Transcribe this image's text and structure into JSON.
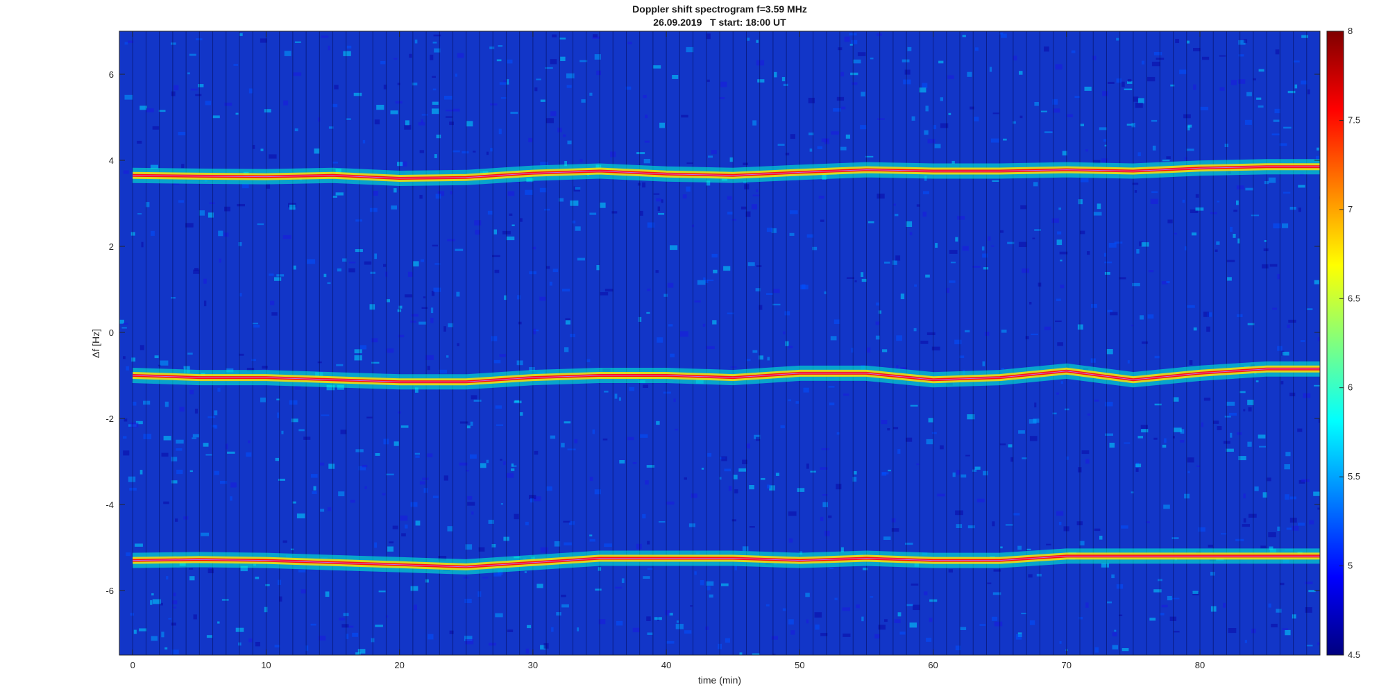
{
  "chart_data": {
    "type": "heatmap",
    "title": "Doppler shift spectrogram f=3.59 MHz",
    "subtitle": "26.09.2019   T start: 18:00 UT",
    "xlabel": "time (min)",
    "ylabel": "Δf [Hz]",
    "xlim": [
      -1,
      89
    ],
    "ylim": [
      -7.5,
      7.0
    ],
    "x_ticks": [
      0,
      10,
      20,
      30,
      40,
      50,
      60,
      70,
      80
    ],
    "y_ticks": [
      6,
      4,
      2,
      0,
      -2,
      -4,
      -6
    ],
    "colorbar": {
      "colormap": "jet",
      "range": [
        4.5,
        8
      ],
      "ticks": [
        8,
        7.5,
        7,
        6.5,
        6,
        5.5,
        5,
        4.5
      ]
    },
    "series": [
      {
        "x": [
          0,
          5,
          10,
          15,
          20,
          25,
          30,
          35,
          40,
          45,
          50,
          55,
          60,
          65,
          70,
          75,
          80,
          85,
          89
        ],
        "values": [
          3.65,
          3.63,
          3.62,
          3.65,
          3.58,
          3.6,
          3.7,
          3.75,
          3.68,
          3.65,
          3.72,
          3.78,
          3.75,
          3.75,
          3.78,
          3.75,
          3.82,
          3.85,
          3.85
        ]
      },
      {
        "x": [
          0,
          5,
          10,
          15,
          20,
          25,
          30,
          35,
          40,
          45,
          50,
          55,
          60,
          65,
          70,
          75,
          80,
          85,
          89
        ],
        "values": [
          -1.0,
          -1.05,
          -1.05,
          -1.1,
          -1.15,
          -1.15,
          -1.05,
          -1.0,
          -1.0,
          -1.05,
          -0.95,
          -0.95,
          -1.1,
          -1.05,
          -0.9,
          -1.1,
          -0.95,
          -0.85,
          -0.85
        ]
      },
      {
        "x": [
          0,
          5,
          10,
          15,
          20,
          25,
          30,
          35,
          40,
          45,
          50,
          55,
          60,
          65,
          70,
          75,
          80,
          85,
          89
        ],
        "values": [
          -5.3,
          -5.28,
          -5.3,
          -5.35,
          -5.4,
          -5.45,
          -5.35,
          -5.25,
          -5.25,
          -5.25,
          -5.3,
          -5.25,
          -5.3,
          -5.3,
          -5.2,
          -5.2,
          -5.2,
          -5.2,
          -5.2
        ]
      }
    ]
  }
}
